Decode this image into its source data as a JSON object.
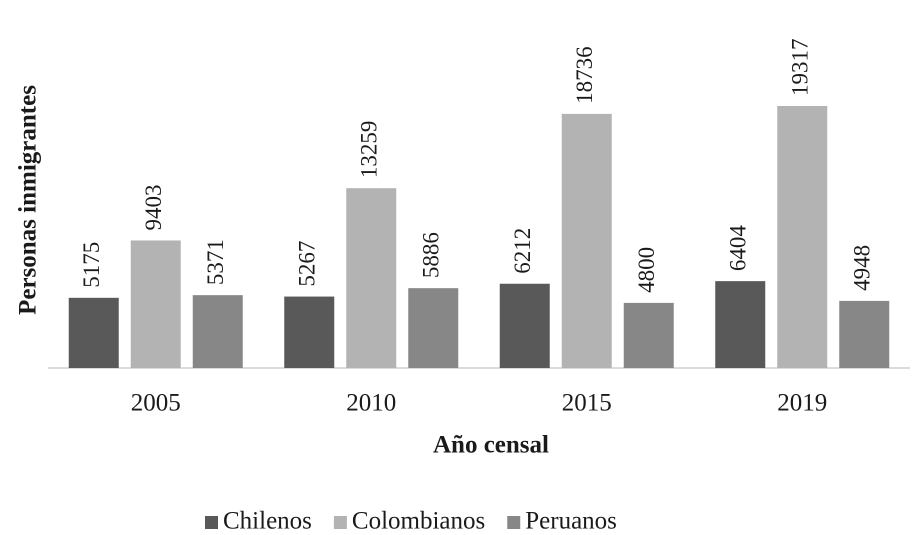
{
  "chart_data": {
    "type": "bar",
    "x_label": "Año censal",
    "y_label": "Personas inmigrantes",
    "categories": [
      "2005",
      "2010",
      "2015",
      "2019"
    ],
    "series": [
      {
        "name": "Chilenos",
        "color": "#595959",
        "values": [
          5175,
          5267,
          6212,
          6404
        ]
      },
      {
        "name": "Colombianos",
        "color": "#b3b3b3",
        "values": [
          9403,
          13259,
          18736,
          19317
        ]
      },
      {
        "name": "Peruanos",
        "color": "#878787",
        "values": [
          5371,
          5886,
          4800,
          4948
        ]
      }
    ],
    "legend": "bottom"
  }
}
